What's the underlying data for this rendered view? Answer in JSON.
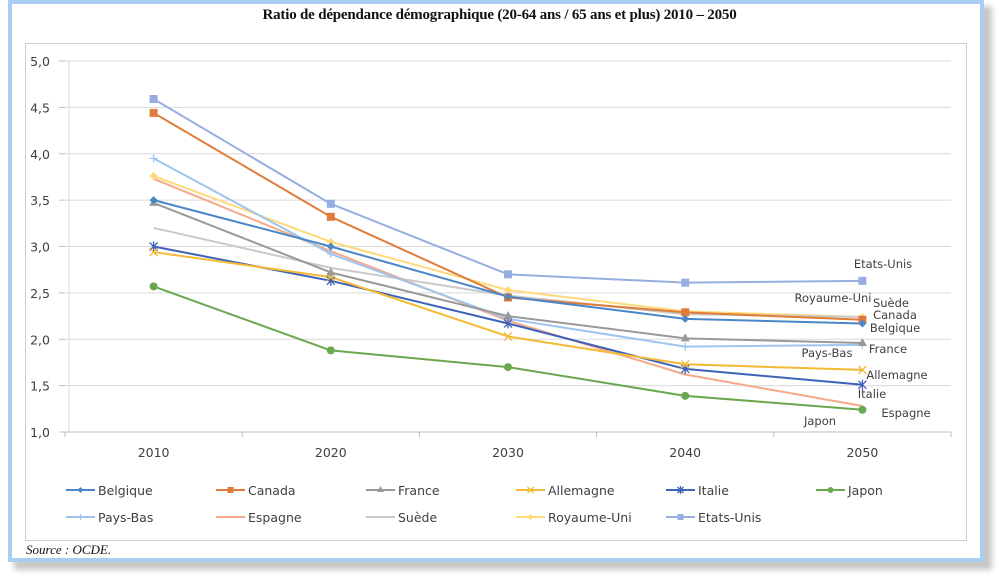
{
  "chart_data": {
    "type": "line",
    "title": "Ratio de dépendance démographique (20-64 ans / 65 ans et plus) 2010 – 2050",
    "xlabel": "",
    "ylabel": "",
    "categories": [
      "2010",
      "2020",
      "2030",
      "2040",
      "2050"
    ],
    "ylim": [
      1.0,
      5.0
    ],
    "yticks": [
      "1,0",
      "1,5",
      "2,0",
      "2,5",
      "3,0",
      "3,5",
      "4,0",
      "4,5",
      "5,0"
    ],
    "ytick_values": [
      1.0,
      1.5,
      2.0,
      2.5,
      3.0,
      3.5,
      4.0,
      4.5,
      5.0
    ],
    "grid": true,
    "legend_position": "bottom",
    "series": [
      {
        "name": "Belgique",
        "color": "#4a86c8",
        "marker": "diamond",
        "values": [
          3.5,
          3.0,
          2.46,
          2.22,
          2.17
        ]
      },
      {
        "name": "Canada",
        "color": "#e07b39",
        "marker": "square",
        "values": [
          4.44,
          3.32,
          2.45,
          2.29,
          2.21
        ]
      },
      {
        "name": "France",
        "color": "#999999",
        "marker": "triangle",
        "values": [
          3.47,
          2.72,
          2.25,
          2.01,
          1.96
        ]
      },
      {
        "name": "Allemagne",
        "color": "#f4b935",
        "marker": "x",
        "values": [
          2.94,
          2.67,
          2.03,
          1.73,
          1.67
        ]
      },
      {
        "name": "Italie",
        "color": "#3d63b8",
        "marker": "star",
        "values": [
          3.0,
          2.63,
          2.17,
          1.68,
          1.51
        ]
      },
      {
        "name": "Japon",
        "color": "#6aa84f",
        "marker": "circle",
        "values": [
          2.57,
          1.88,
          1.7,
          1.39,
          1.24
        ]
      },
      {
        "name": "Pays-Bas",
        "color": "#9fc5ee",
        "marker": "plus",
        "values": [
          3.95,
          2.92,
          2.22,
          1.92,
          1.94
        ]
      },
      {
        "name": "Espagne",
        "color": "#f4a98a",
        "marker": "none",
        "values": [
          3.73,
          2.95,
          2.2,
          1.62,
          1.28
        ]
      },
      {
        "name": "Suède",
        "color": "#c9c9c9",
        "marker": "none",
        "values": [
          3.2,
          2.77,
          2.47,
          2.27,
          2.24
        ]
      },
      {
        "name": "Royaume-Uni",
        "color": "#ffd97a",
        "marker": "diamond",
        "values": [
          3.76,
          3.05,
          2.53,
          2.3,
          2.24
        ]
      },
      {
        "name": "Etats-Unis",
        "color": "#97aee0",
        "marker": "square",
        "values": [
          4.59,
          3.46,
          2.7,
          2.61,
          2.63
        ]
      }
    ],
    "annotations": [
      "Etats-Unis",
      "Royaume-Uni",
      "Suède",
      "Canada",
      "Belgique",
      "Pays-Bas",
      "France",
      "Allemagne",
      "Italie",
      "Espagne",
      "Japon"
    ]
  },
  "source": "Source : OCDE."
}
